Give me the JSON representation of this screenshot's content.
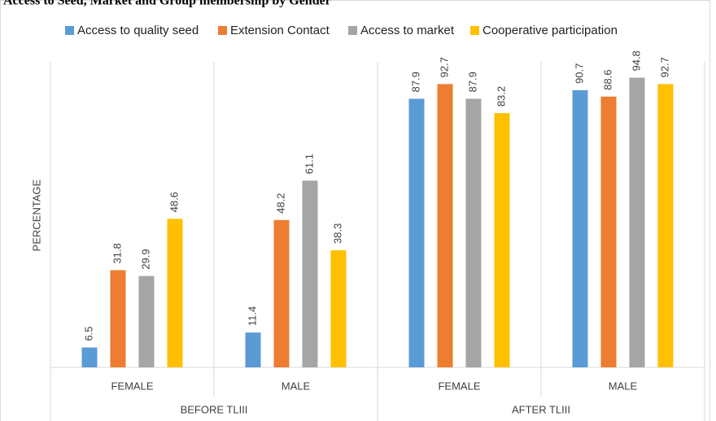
{
  "chart_data": {
    "type": "bar",
    "title": "Access to Seed, Market and Group membership by Gender",
    "ylabel": "PERCENTAGE",
    "groups": [
      {
        "name": "BEFORE TLIII",
        "categories": [
          "FEMALE",
          "MALE"
        ]
      },
      {
        "name": "AFTER TLIII",
        "categories": [
          "FEMALE",
          "MALE"
        ]
      }
    ],
    "series": [
      {
        "name": "Access to quality seed",
        "color": "#5b9bd5",
        "values": [
          6.5,
          11.4,
          87.9,
          90.7
        ]
      },
      {
        "name": "Extension Contact",
        "color": "#ed7d31",
        "values": [
          31.8,
          48.2,
          92.7,
          88.6
        ]
      },
      {
        "name": "Access to market",
        "color": "#a5a5a5",
        "values": [
          29.9,
          61.1,
          87.9,
          94.8
        ]
      },
      {
        "name": "Cooperative participation",
        "color": "#ffc000",
        "values": [
          48.6,
          38.3,
          83.2,
          92.7
        ]
      }
    ],
    "ylim": [
      0,
      100
    ],
    "legend": "top"
  }
}
